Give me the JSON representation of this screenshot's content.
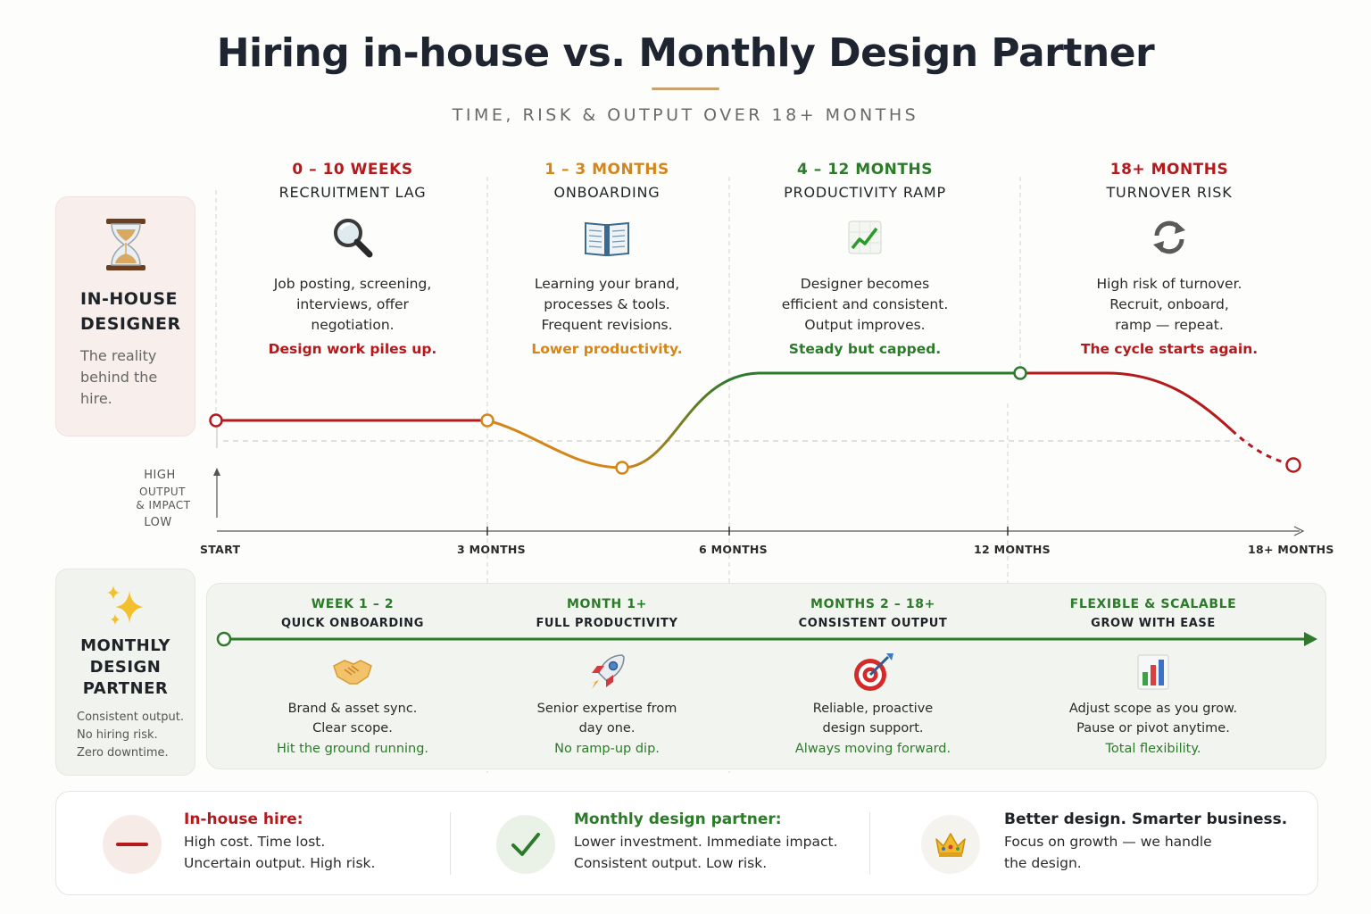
{
  "header": {
    "title": "Hiring in-house vs. Monthly Design Partner",
    "subtitle": "TIME, RISK & OUTPUT OVER 18+ MONTHS"
  },
  "inhouse": {
    "icon": "hourglass-icon",
    "heading_line1": "IN-HOUSE",
    "heading_line2": "DESIGNER",
    "sub_line1": "The reality",
    "sub_line2": "behind the",
    "sub_line3": "hire."
  },
  "phases": [
    {
      "range": "0 – 10 WEEKS",
      "title": "RECRUITMENT LAG",
      "icon": "magnifier-icon",
      "desc": [
        "Job posting, screening,",
        "interviews, offer",
        "negotiation."
      ],
      "note": "Design work piles up.",
      "color": "#b4191c"
    },
    {
      "range": "1 – 3 MONTHS",
      "title": "ONBOARDING",
      "icon": "open-book-icon",
      "desc": [
        "Learning your brand,",
        "processes & tools.",
        "Frequent revisions."
      ],
      "note": "Lower productivity.",
      "color": "#d5861b"
    },
    {
      "range": "4 – 12 MONTHS",
      "title": "PRODUCTIVITY RAMP",
      "icon": "chart-up-icon",
      "desc": [
        "Designer becomes",
        "efficient and consistent.",
        "Output improves."
      ],
      "note": "Steady but capped.",
      "color": "#2c7a2a"
    },
    {
      "range": "18+ MONTHS",
      "title": "TURNOVER RISK",
      "icon": "cycle-arrows-icon",
      "desc": [
        "High risk of turnover.",
        "Recruit, onboard,",
        "ramp — repeat."
      ],
      "note": "The cycle starts again.",
      "color": "#b4191c"
    }
  ],
  "axis": {
    "y_high": "HIGH",
    "y_mid1": "OUTPUT",
    "y_mid2": "& IMPACT",
    "y_low": "LOW",
    "ticks": [
      "START",
      "3 MONTHS",
      "6 MONTHS",
      "12 MONTHS",
      "18+ MONTHS"
    ]
  },
  "partner": {
    "icon": "sparkles-icon",
    "heading_line1": "MONTHLY",
    "heading_line2": "DESIGN",
    "heading_line3": "PARTNER",
    "sub_line1": "Consistent output.",
    "sub_line2": "No hiring risk.",
    "sub_line3": "Zero downtime.",
    "columns": [
      {
        "range": "WEEK 1 – 2",
        "title": "QUICK ONBOARDING",
        "icon": "handshake-icon",
        "desc": [
          "Brand & asset sync.",
          "Clear scope."
        ],
        "note": "Hit the ground running."
      },
      {
        "range": "MONTH 1+",
        "title": "FULL PRODUCTIVITY",
        "icon": "rocket-icon",
        "desc": [
          "Senior expertise from",
          "day one."
        ],
        "note": "No ramp-up dip."
      },
      {
        "range": "MONTHS 2 – 18+",
        "title": "CONSISTENT OUTPUT",
        "icon": "target-icon",
        "desc": [
          "Reliable, proactive",
          "design support."
        ],
        "note": "Always moving forward."
      },
      {
        "range": "FLEXIBLE & SCALABLE",
        "title": "GROW WITH EASE",
        "icon": "bar-chart-icon",
        "desc": [
          "Adjust scope as you grow.",
          "Pause or pivot anytime."
        ],
        "note": "Total flexibility."
      }
    ]
  },
  "summary": [
    {
      "icon": "minus-icon",
      "title": "In-house hire:",
      "line1": "High cost. Time lost.",
      "line2": "Uncertain output. High risk."
    },
    {
      "icon": "check-icon",
      "title": "Monthly design partner:",
      "line1": "Lower investment. Immediate impact.",
      "line2": "Consistent output. Low risk."
    },
    {
      "icon": "crown-icon",
      "title": "Better design. Smarter business.",
      "line1": "Focus on growth — we handle",
      "line2": "the design."
    }
  ],
  "colors": {
    "red": "#b4191c",
    "orange": "#d5861b",
    "green": "#2c7a2a",
    "title_rule": "#c9a170"
  }
}
